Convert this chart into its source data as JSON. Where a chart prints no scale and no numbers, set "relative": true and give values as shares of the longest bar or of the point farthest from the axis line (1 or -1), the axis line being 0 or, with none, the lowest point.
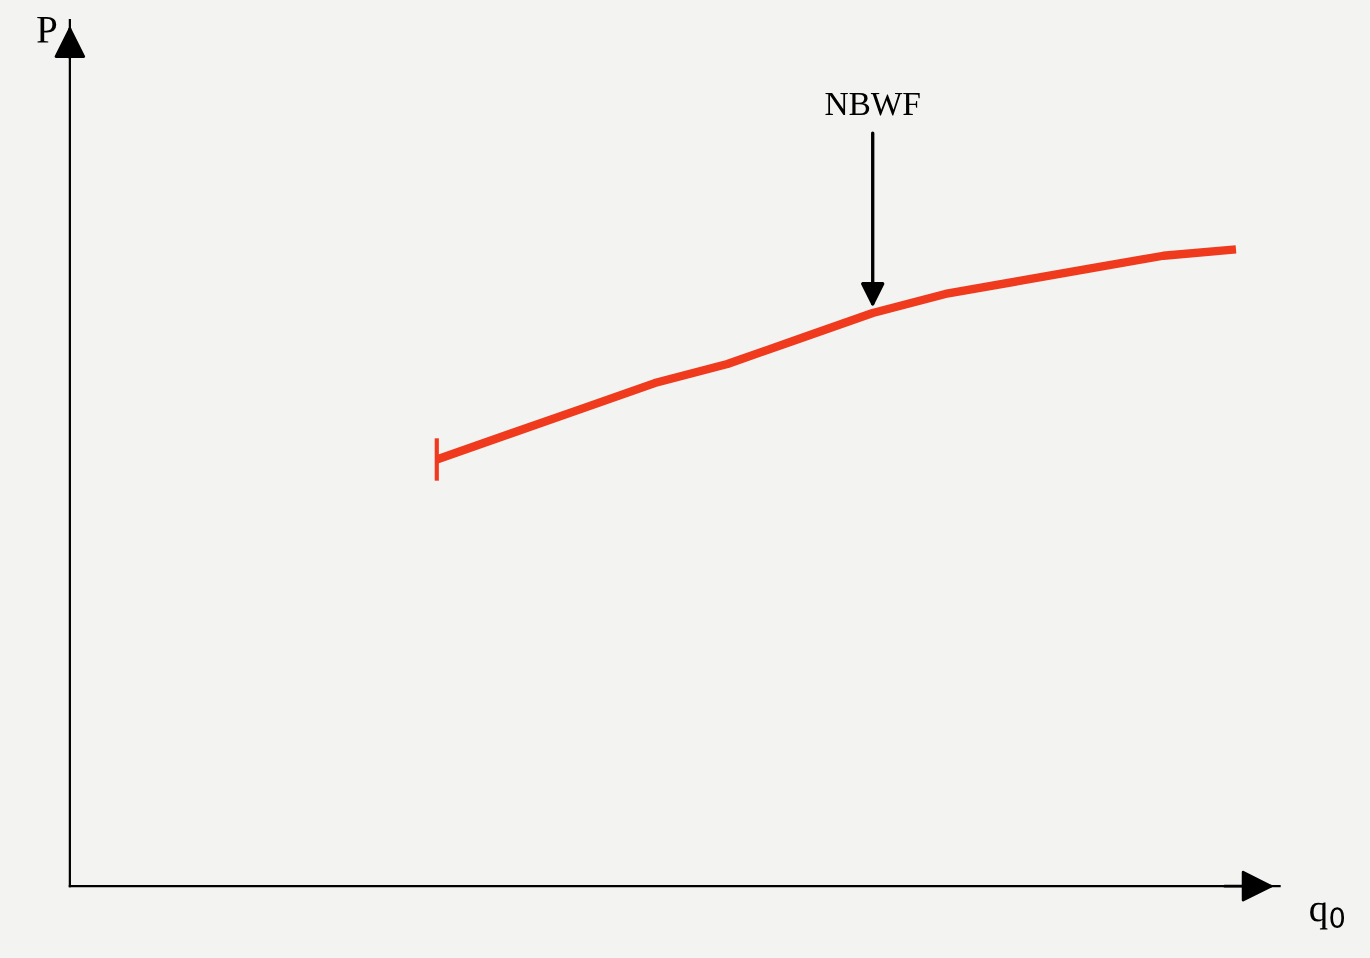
{
  "chart_data": {
    "type": "line",
    "relative": true,
    "xlabel": "q$_{0}$",
    "categories": [
      null,
      null,
      null,
      null,
      null,
      null,
      null,
      null,
      null,
      null,
      null,
      null,
      null,
      null,
      null,
      null,
      null
    ],
    "series": [
      {
        "color": "#f03a1e",
        "values": [
          null,
          null,
          null,
          null,
          null,
          0.67,
          0.71,
          0.75,
          0.79,
          0.82,
          0.86,
          0.9,
          0.93,
          0.95,
          0.97,
          0.99,
          1.0
        ]
      }
    ],
    "annotations": [
      "P",
      {
        "text": "NBWF",
        "y": 0.9
      }
    ],
    "grid": false,
    "marker": "none",
    "line_style": "solid"
  }
}
